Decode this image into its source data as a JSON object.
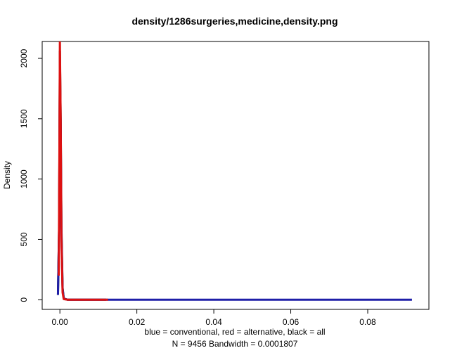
{
  "chart_data": {
    "type": "line",
    "title": "density/1286surgeries,medicine,density.png",
    "xlabel": "blue = conventional, red = alternative, black = all",
    "sublabel": "N = 9456   Bandwidth = 0.0001807",
    "ylabel": "Density",
    "xlim": [
      -0.0046,
      0.0959
    ],
    "ylim": [
      -80,
      2140
    ],
    "x_ticks": [
      0.0,
      0.02,
      0.04,
      0.06,
      0.08
    ],
    "x_tick_labels": [
      "0.00",
      "0.02",
      "0.04",
      "0.06",
      "0.08"
    ],
    "y_ticks": [
      0,
      500,
      1000,
      1500,
      2000
    ],
    "y_tick_labels": [
      "0",
      "500",
      "1000",
      "1500",
      "2000"
    ],
    "grid": false,
    "series": [
      {
        "name": "all",
        "color": "#000000",
        "points": [
          [
            -0.0005,
            40
          ],
          [
            -0.0002,
            600
          ],
          [
            0.0,
            2060
          ],
          [
            0.0002,
            1500
          ],
          [
            0.0004,
            600
          ],
          [
            0.0007,
            100
          ],
          [
            0.001,
            10
          ],
          [
            0.002,
            0
          ],
          [
            0.012,
            0
          ]
        ]
      },
      {
        "name": "conventional",
        "color": "#1f1fa8",
        "points": [
          [
            -0.0005,
            40
          ],
          [
            -0.0002,
            600
          ],
          [
            0.0,
            1900
          ],
          [
            0.0002,
            1400
          ],
          [
            0.0004,
            550
          ],
          [
            0.0007,
            90
          ],
          [
            0.001,
            10
          ],
          [
            0.002,
            0
          ],
          [
            0.02,
            0
          ],
          [
            0.04,
            0
          ],
          [
            0.06,
            0
          ],
          [
            0.08,
            0
          ],
          [
            0.0915,
            0
          ]
        ]
      },
      {
        "name": "alternative",
        "color": "#dd1111",
        "points": [
          [
            -0.0003,
            200
          ],
          [
            -0.0001,
            1400
          ],
          [
            0.0,
            2140
          ],
          [
            0.0002,
            1500
          ],
          [
            0.0004,
            500
          ],
          [
            0.0007,
            60
          ],
          [
            0.001,
            5
          ],
          [
            0.002,
            0
          ],
          [
            0.0125,
            0
          ]
        ]
      }
    ]
  }
}
